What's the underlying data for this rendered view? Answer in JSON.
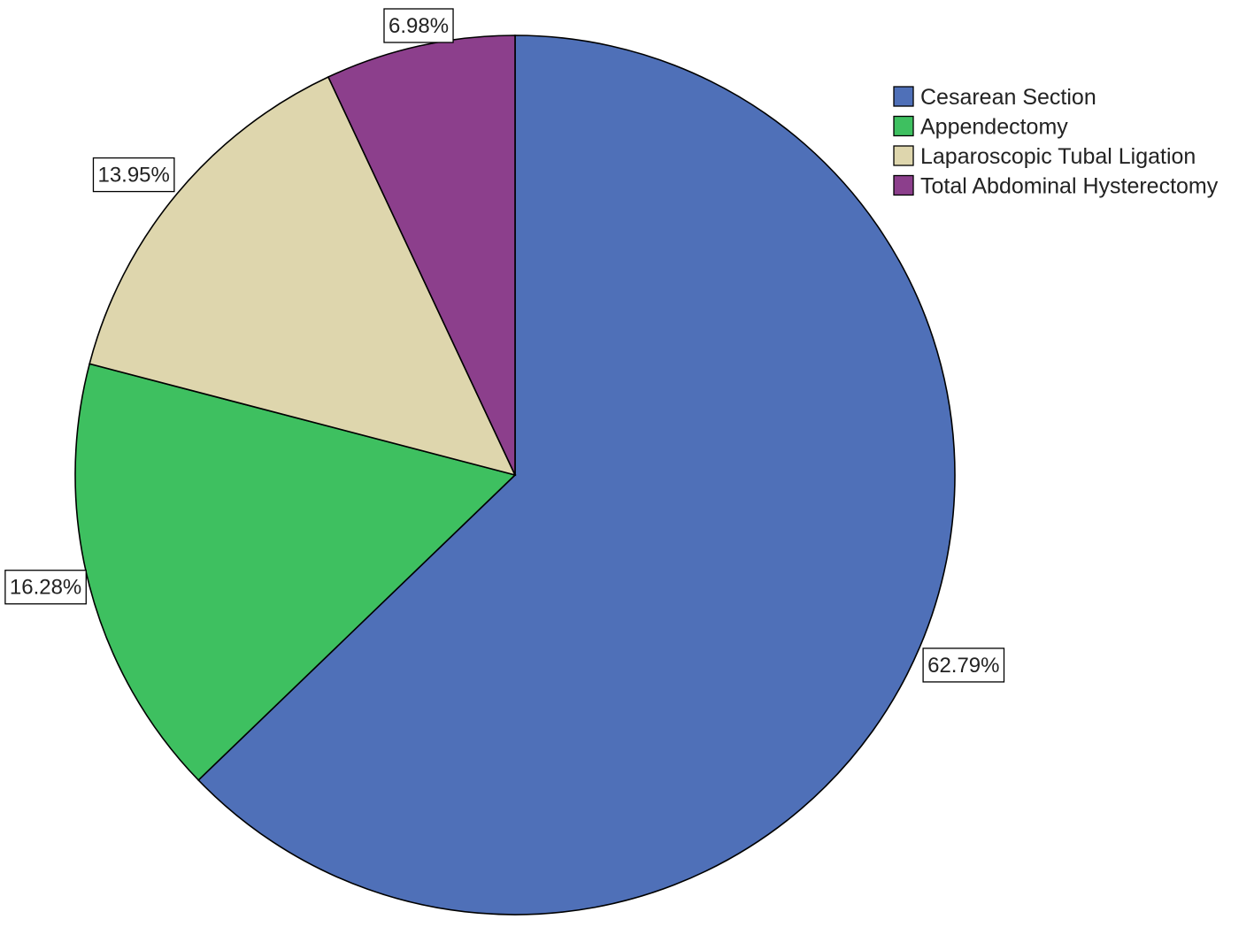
{
  "chart_data": {
    "type": "pie",
    "title": "",
    "start": "top",
    "direction": "clockwise",
    "legend_position": "top-right",
    "slices": [
      {
        "name": "Cesarean Section",
        "value": 62.79,
        "label": "62.79%",
        "color": "#4f70b8"
      },
      {
        "name": "Appendectomy",
        "value": 16.28,
        "label": "16.28%",
        "color": "#3ec060"
      },
      {
        "name": "Laparoscopic Tubal Ligation",
        "value": 13.95,
        "label": "13.95%",
        "color": "#ded6ad"
      },
      {
        "name": "Total Abdominal Hysterectomy",
        "value": 6.98,
        "label": "6.98%",
        "color": "#8c3f8c"
      }
    ]
  }
}
